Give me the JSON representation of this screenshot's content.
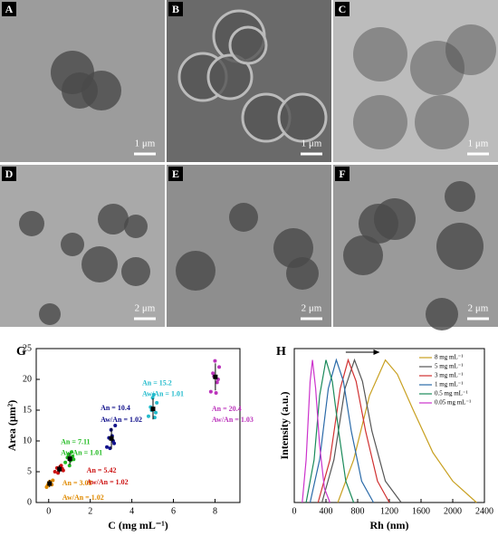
{
  "panels": [
    {
      "label": "A",
      "scale_bar": "1 μm"
    },
    {
      "label": "B",
      "scale_bar": "1 μm"
    },
    {
      "label": "C",
      "scale_bar": "1 μm"
    },
    {
      "label": "D",
      "scale_bar": "2 μm"
    },
    {
      "label": "E",
      "scale_bar": "2 μm"
    },
    {
      "label": "F",
      "scale_bar": "2 μm"
    }
  ],
  "chart_data": [
    {
      "type": "scatter",
      "panel": "G",
      "xlabel": "C (mg mL⁻¹)",
      "ylabel": "Area (μm²)",
      "xlim": [
        -0.6,
        9.2
      ],
      "xticks": [
        0,
        2,
        4,
        6,
        8
      ],
      "ylim": [
        0,
        25
      ],
      "yticks": [
        0,
        5,
        10,
        15,
        20,
        25
      ],
      "series": [
        {
          "color": "#e08a00",
          "x": [
            -0.1,
            0,
            0.1,
            0.2,
            -0.05,
            0.05,
            0.15,
            0
          ],
          "values": [
            2.5,
            3.2,
            3.0,
            3.6,
            2.8,
            3.4,
            2.9,
            3.1
          ],
          "mean": 3.08,
          "error": 0.6,
          "labels": [
            "An = 3.08",
            "Aw/An = 1.02"
          ]
        },
        {
          "color": "#cc1111",
          "x": [
            0.3,
            0.4,
            0.5,
            0.6,
            0.7,
            0.45,
            0.55,
            0.65
          ],
          "values": [
            5.0,
            5.6,
            5.3,
            6.0,
            5.2,
            4.8,
            5.8,
            5.5
          ],
          "mean": 5.42,
          "error": 0.6,
          "labels": [
            "An = 5.42",
            "Aw/An = 1.02"
          ]
        },
        {
          "color": "#22bb22",
          "x": [
            0.8,
            0.9,
            1.0,
            1.1,
            1.2,
            0.95,
            1.05,
            1.15
          ],
          "values": [
            6.5,
            7.3,
            6.0,
            8.2,
            7.0,
            7.8,
            6.8,
            7.5
          ],
          "mean": 7.11,
          "error": 1.0,
          "labels": [
            "An = 7.11",
            "Aw/An = 1.01"
          ]
        },
        {
          "color": "#10108b",
          "x": [
            2.8,
            2.9,
            3.0,
            3.1,
            3.2,
            2.95,
            3.05,
            3.15
          ],
          "values": [
            9.0,
            10.5,
            11.8,
            10.0,
            12.5,
            8.8,
            10.8,
            9.6
          ],
          "mean": 10.4,
          "error": 1.7,
          "labels": [
            "An = 10.4",
            "Aw/An = 1.02"
          ]
        },
        {
          "color": "#22bbcc",
          "x": [
            4.8,
            4.9,
            5.0,
            5.1,
            5.2,
            4.95,
            5.05,
            5.15
          ],
          "values": [
            14.0,
            15.5,
            17.0,
            13.8,
            16.2,
            15.0,
            17.5,
            14.6
          ],
          "mean": 15.2,
          "error": 1.7,
          "labels": [
            "An = 15.2",
            "Aw/An = 1.01"
          ]
        },
        {
          "color": "#bb33bb",
          "x": [
            7.8,
            7.9,
            8.0,
            8.1,
            8.2,
            7.95,
            8.05,
            8.15
          ],
          "values": [
            18.0,
            21.0,
            23.0,
            19.5,
            22.0,
            20.5,
            17.8,
            20.0
          ],
          "mean": 20.4,
          "error": 2.2,
          "labels": [
            "An = 20.4",
            "Aw/An = 1.03"
          ]
        }
      ]
    },
    {
      "type": "line",
      "panel": "H",
      "xlabel": "Rh (nm)",
      "ylabel": "Intensity (a.u.)",
      "xlim": [
        0,
        2400
      ],
      "xticks": [
        0,
        400,
        800,
        1200,
        1600,
        2000,
        2400
      ],
      "ylim": [
        0,
        1.08
      ],
      "series": [
        {
          "name": "8 mg mL⁻¹",
          "color": "#c8a020",
          "x": [
            550,
            750,
            950,
            1150,
            1300,
            1500,
            1750,
            2000,
            2300
          ],
          "values": [
            0,
            0.3,
            0.75,
            1,
            0.9,
            0.65,
            0.35,
            0.15,
            0
          ]
        },
        {
          "name": "5 mg mL⁻¹",
          "color": "#555555",
          "x": [
            350,
            500,
            640,
            760,
            860,
            980,
            1150,
            1350
          ],
          "values": [
            0,
            0.3,
            0.8,
            1,
            0.85,
            0.5,
            0.15,
            0
          ]
        },
        {
          "name": "3 mg mL⁻¹",
          "color": "#d03030",
          "x": [
            300,
            450,
            580,
            680,
            780,
            900,
            1050,
            1200
          ],
          "values": [
            0,
            0.3,
            0.8,
            1,
            0.85,
            0.5,
            0.15,
            0
          ]
        },
        {
          "name": "1 mg mL⁻¹",
          "color": "#2a6aa8",
          "x": [
            200,
            320,
            430,
            530,
            620,
            720,
            850,
            1000
          ],
          "values": [
            0,
            0.3,
            0.8,
            1,
            0.85,
            0.5,
            0.15,
            0
          ]
        },
        {
          "name": "0.5 mg mL⁻¹",
          "color": "#1a8a5a",
          "x": [
            150,
            250,
            320,
            400,
            480,
            560,
            650,
            750
          ],
          "values": [
            0,
            0.3,
            0.75,
            1,
            0.85,
            0.5,
            0.15,
            0
          ]
        },
        {
          "name": "0.05 mg mL⁻¹",
          "color": "#cc33cc",
          "x": [
            100,
            150,
            200,
            230,
            270,
            320,
            380,
            450
          ],
          "values": [
            0,
            0.3,
            0.85,
            1,
            0.8,
            0.4,
            0.1,
            0
          ]
        }
      ]
    }
  ]
}
